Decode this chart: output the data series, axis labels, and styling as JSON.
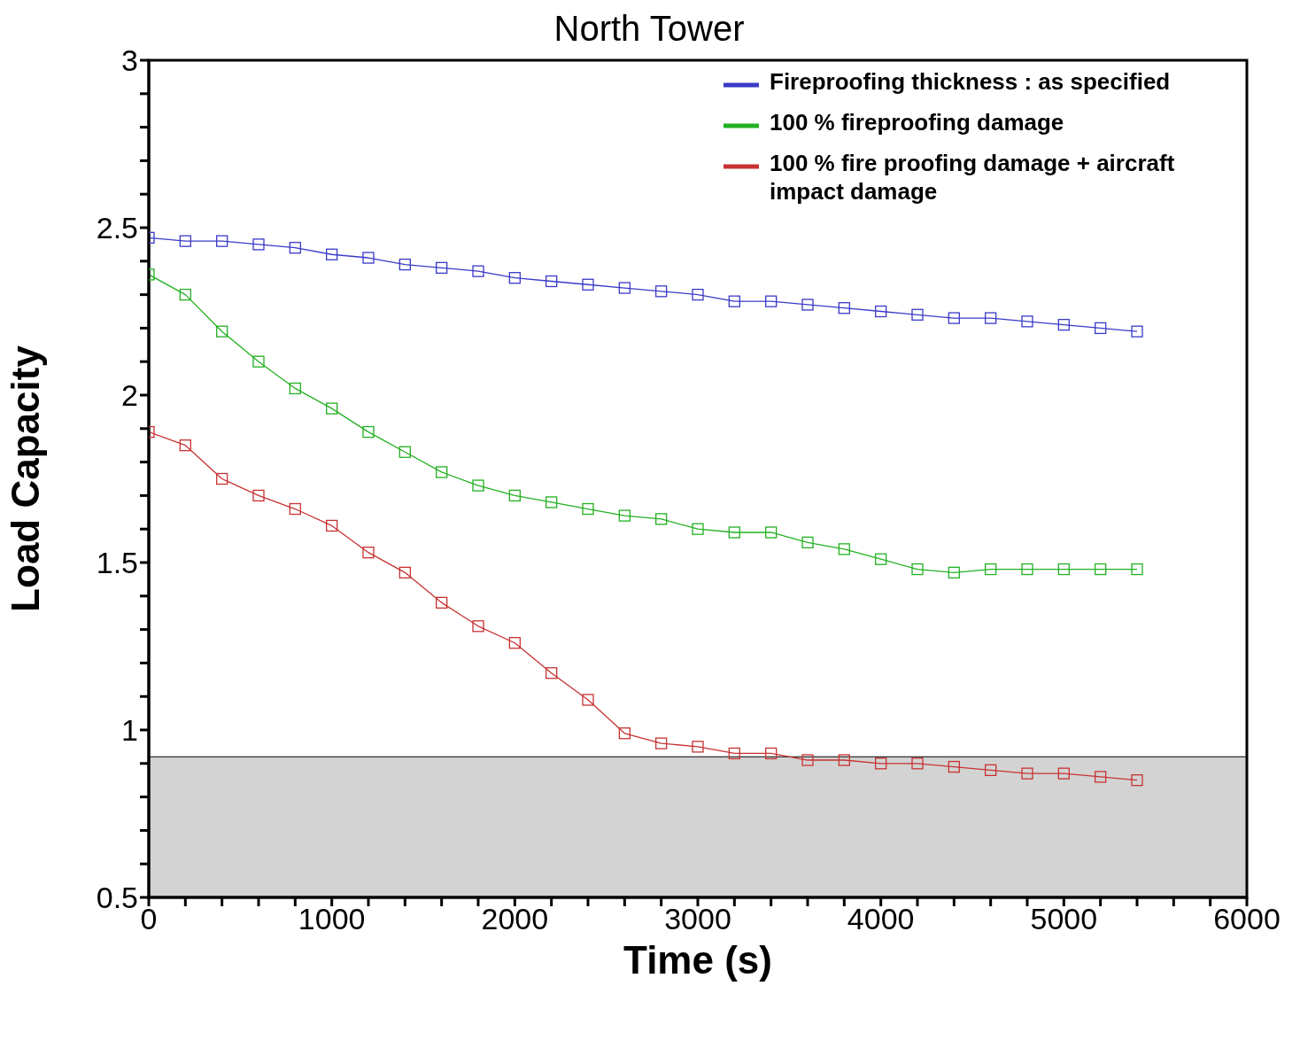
{
  "chart_data": {
    "type": "line",
    "title": "North Tower",
    "xlabel": "Time (s)",
    "ylabel": "Load Capacity",
    "x": [
      0,
      200,
      400,
      600,
      800,
      1000,
      1200,
      1400,
      1600,
      1800,
      2000,
      2200,
      2400,
      2600,
      2800,
      3000,
      3200,
      3400,
      3600,
      3800,
      4000,
      4200,
      4400,
      4600,
      4800,
      5000,
      5200,
      5400
    ],
    "series": [
      {
        "name": "Fireproofing thickness : as specified",
        "color": "#3a3ac8",
        "values": [
          2.47,
          2.46,
          2.46,
          2.45,
          2.44,
          2.42,
          2.41,
          2.39,
          2.38,
          2.37,
          2.35,
          2.34,
          2.33,
          2.32,
          2.31,
          2.3,
          2.28,
          2.28,
          2.27,
          2.26,
          2.25,
          2.24,
          2.23,
          2.23,
          2.22,
          2.21,
          2.2,
          2.19
        ]
      },
      {
        "name": "100 % fireproofing damage",
        "color": "#22b022",
        "values": [
          2.36,
          2.3,
          2.19,
          2.1,
          2.02,
          1.96,
          1.89,
          1.83,
          1.77,
          1.73,
          1.7,
          1.68,
          1.66,
          1.64,
          1.63,
          1.6,
          1.59,
          1.59,
          1.56,
          1.54,
          1.51,
          1.48,
          1.47,
          1.48,
          1.48,
          1.48,
          1.48,
          1.48
        ]
      },
      {
        "name": "100 % fire proofing damage + aircraft impact damage",
        "color": "#c83232",
        "values": [
          1.89,
          1.85,
          1.75,
          1.7,
          1.66,
          1.61,
          1.53,
          1.47,
          1.38,
          1.31,
          1.26,
          1.17,
          1.09,
          0.99,
          0.96,
          0.95,
          0.93,
          0.93,
          0.91,
          0.91,
          0.9,
          0.9,
          0.89,
          0.88,
          0.87,
          0.87,
          0.86,
          0.85
        ]
      }
    ],
    "bands": [
      {
        "axis": "y",
        "from": 0.5,
        "to": 0.92,
        "color": "#d3d3d3"
      }
    ],
    "xlim": [
      0,
      6000
    ],
    "xticks": [
      0,
      {
        "value": 200,
        "label": null
      },
      {
        "value": 400,
        "label": null
      },
      {
        "value": 600,
        "label": null
      },
      {
        "value": 800,
        "label": null
      },
      1000,
      {
        "value": 1200,
        "label": null
      },
      {
        "value": 1400,
        "label": null
      },
      {
        "value": 1600,
        "label": null
      },
      {
        "value": 1800,
        "label": null
      },
      2000,
      {
        "value": 2200,
        "label": null
      },
      {
        "value": 2400,
        "label": null
      },
      {
        "value": 2600,
        "label": null
      },
      {
        "value": 2800,
        "label": null
      },
      3000,
      {
        "value": 3200,
        "label": null
      },
      {
        "value": 3400,
        "label": null
      },
      {
        "value": 3600,
        "label": null
      },
      {
        "value": 3800,
        "label": null
      },
      4000,
      {
        "value": 4200,
        "label": null
      },
      {
        "value": 4400,
        "label": null
      },
      {
        "value": 4600,
        "label": null
      },
      {
        "value": 4800,
        "label": null
      },
      5000,
      {
        "value": 5200,
        "label": null
      },
      {
        "value": 5400,
        "label": null
      },
      {
        "value": 5600,
        "label": null
      },
      {
        "value": 5800,
        "label": null
      },
      6000
    ],
    "ylim": [
      0.5,
      3
    ],
    "yticks": [
      0.5,
      {
        "value": 0.6,
        "label": null
      },
      {
        "value": 0.7,
        "label": null
      },
      {
        "value": 0.8,
        "label": null
      },
      {
        "value": 0.9,
        "label": null
      },
      1,
      {
        "value": 1.1,
        "label": null
      },
      {
        "value": 1.2,
        "label": null
      },
      {
        "value": 1.3,
        "label": null
      },
      {
        "value": 1.4,
        "label": null
      },
      1.5,
      {
        "value": 1.6,
        "label": null
      },
      {
        "value": 1.7,
        "label": null
      },
      {
        "value": 1.8,
        "label": null
      },
      {
        "value": 1.9,
        "label": null
      },
      2,
      {
        "value": 2.1,
        "label": null
      },
      {
        "value": 2.2,
        "label": null
      },
      {
        "value": 2.3,
        "label": null
      },
      {
        "value": 2.4,
        "label": null
      },
      2.5,
      {
        "value": 2.6,
        "label": null
      },
      {
        "value": 2.7,
        "label": null
      },
      {
        "value": 2.8,
        "label": null
      },
      {
        "value": 2.9,
        "label": null
      },
      3
    ],
    "grid": false,
    "legend": "top right",
    "marker": "square",
    "line_style": "solid"
  }
}
